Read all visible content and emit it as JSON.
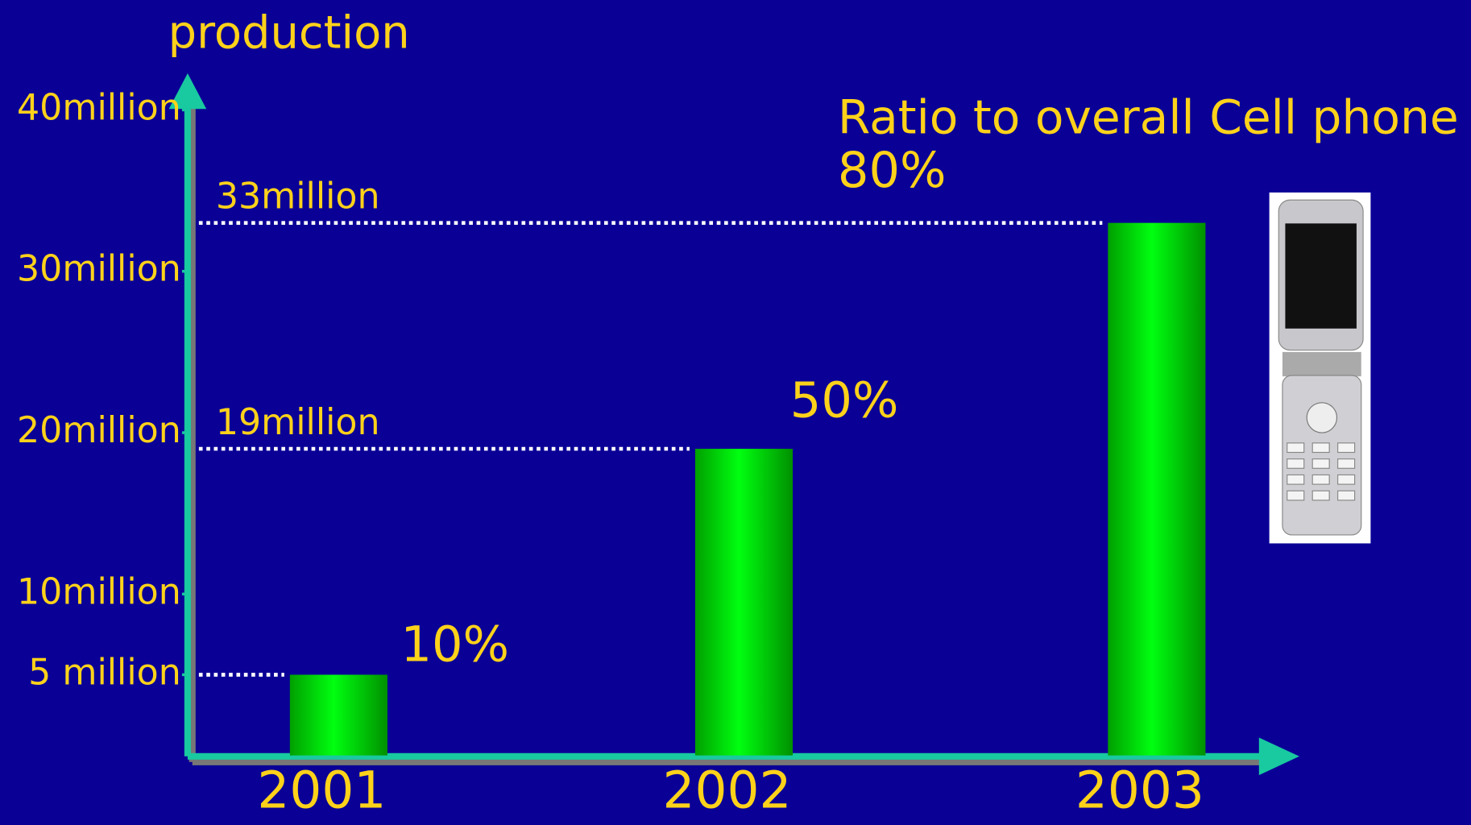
{
  "chart_data": {
    "type": "bar",
    "y_label": "production",
    "annotation": "Ratio to overall Cell phone",
    "categories": [
      "2001",
      "2002",
      "2003"
    ],
    "values": [
      5000000,
      19000000,
      33000000
    ],
    "value_labels": [
      null,
      "19million",
      "33million"
    ],
    "ratio_labels": [
      "10%",
      "50%",
      "80%"
    ],
    "color": "#00ee00",
    "ylim": [
      0,
      40000000
    ],
    "yticks": [
      {
        "value": 5000000,
        "label": "5 million"
      },
      {
        "value": 10000000,
        "label": "10million"
      },
      {
        "value": 20000000,
        "label": "20million"
      },
      {
        "value": 30000000,
        "label": "30million"
      },
      {
        "value": 40000000,
        "label": "40million"
      }
    ]
  }
}
